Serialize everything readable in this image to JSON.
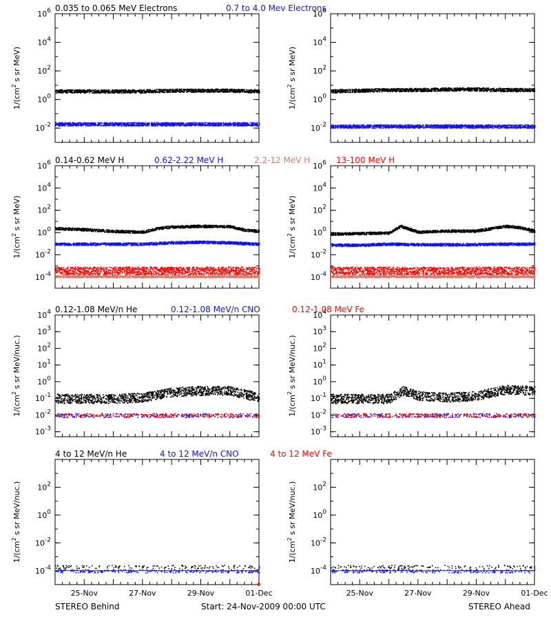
{
  "colors": {
    "black": "#000000",
    "blue": "#1010ff",
    "salmon": "#d08070",
    "red": "#ff0000"
  },
  "footer": {
    "left": "STEREO Behind",
    "center": "Start: 24-Nov-2009 00:00 UTC",
    "right": "STEREO Ahead"
  },
  "chart_data": [
    {
      "type": "scatter",
      "row": "electrons",
      "spacecraft": "STEREO Behind",
      "title": "0.035 to 0.065 MeV Electrons   0.7 to 4.0 Mev Electrons",
      "ylabel": "1/(cm2 s sr MeV)",
      "yscale": "log",
      "ylim": [
        0.001,
        1000000
      ],
      "yticks": [
        0.01,
        1,
        100,
        10000,
        1000000
      ],
      "yticklabels": [
        "10^-2",
        "10^0",
        "10^2",
        "10^4",
        "10^6"
      ],
      "xlim": [
        "2009-11-24",
        "2009-12-01"
      ],
      "xticklabels": [
        "25-Nov",
        "27-Nov",
        "29-Nov",
        "01-Dec"
      ],
      "series": [
        {
          "name": "0.035 to 0.065 MeV Electrons",
          "color": "black",
          "x": [
            "2009-11-24",
            "2009-11-25",
            "2009-11-26",
            "2009-11-27",
            "2009-11-28",
            "2009-11-29",
            "2009-11-30",
            "2009-12-01"
          ],
          "y": [
            4,
            4,
            4,
            4,
            4.5,
            4.5,
            4.5,
            4
          ]
        },
        {
          "name": "0.7 to 4.0 Mev Electrons",
          "color": "blue",
          "x": [
            "2009-11-24",
            "2009-11-25",
            "2009-11-26",
            "2009-11-27",
            "2009-11-28",
            "2009-11-29",
            "2009-11-30",
            "2009-12-01"
          ],
          "y": [
            0.02,
            0.02,
            0.02,
            0.02,
            0.02,
            0.02,
            0.02,
            0.02
          ]
        }
      ]
    },
    {
      "type": "scatter",
      "row": "electrons",
      "spacecraft": "STEREO Ahead",
      "ylabel": "1/(cm2 s sr MeV)",
      "yscale": "log",
      "ylim": [
        0.001,
        1000000
      ],
      "yticks": [
        0.01,
        1,
        100,
        10000,
        1000000
      ],
      "yticklabels": [
        "10^-2",
        "10^0",
        "10^2",
        "10^4",
        "10^6"
      ],
      "xlim": [
        "2009-11-24",
        "2009-12-01"
      ],
      "xticklabels": [
        "25-Nov",
        "27-Nov",
        "29-Nov",
        "01-Dec"
      ],
      "series": [
        {
          "name": "0.035 to 0.065 MeV Electrons",
          "color": "black",
          "x": [
            "2009-11-24",
            "2009-11-25",
            "2009-11-26",
            "2009-11-27",
            "2009-11-28",
            "2009-11-29",
            "2009-11-30",
            "2009-12-01"
          ],
          "y": [
            4,
            4.5,
            5,
            5,
            5.5,
            5.5,
            5,
            5
          ]
        },
        {
          "name": "0.7 to 4.0 Mev Electrons",
          "color": "blue",
          "x": [
            "2009-11-24",
            "2009-11-25",
            "2009-11-26",
            "2009-11-27",
            "2009-11-28",
            "2009-11-29",
            "2009-11-30",
            "2009-12-01"
          ],
          "y": [
            0.014,
            0.014,
            0.014,
            0.014,
            0.014,
            0.014,
            0.014,
            0.014
          ]
        }
      ]
    },
    {
      "type": "scatter",
      "row": "protons",
      "spacecraft": "STEREO Behind",
      "title": "0.14-0.62 MeV H   0.62-2.22 MeV H   2.2-12 MeV H   13-100 MeV H",
      "ylabel": "1/(cm2 s sr MeV)",
      "yscale": "log",
      "ylim": [
        1e-05,
        1000000
      ],
      "yticks": [
        0.0001,
        0.01,
        1,
        100,
        10000,
        1000000
      ],
      "yticklabels": [
        "10^-4",
        "10^-2",
        "10^0",
        "10^2",
        "10^4",
        "10^6"
      ],
      "xlim": [
        "2009-11-24",
        "2009-12-01"
      ],
      "xticklabels": [
        "25-Nov",
        "27-Nov",
        "29-Nov",
        "01-Dec"
      ],
      "series": [
        {
          "name": "0.14-0.62 MeV H",
          "color": "black",
          "x": [
            "2009-11-24",
            "2009-11-25",
            "2009-11-26",
            "2009-11-27",
            "2009-11-27.5",
            "2009-11-28",
            "2009-11-29",
            "2009-11-30",
            "2009-11-30.5",
            "2009-12-01"
          ],
          "y": [
            2.5,
            2,
            1.4,
            1.2,
            2.5,
            3.5,
            4,
            3.8,
            1.8,
            1.5
          ]
        },
        {
          "name": "0.62-2.22 MeV H",
          "color": "blue",
          "x": [
            "2009-11-24",
            "2009-11-25",
            "2009-11-26",
            "2009-11-27",
            "2009-11-28",
            "2009-11-29",
            "2009-11-30",
            "2009-12-01"
          ],
          "y": [
            0.1,
            0.1,
            0.1,
            0.1,
            0.13,
            0.15,
            0.13,
            0.1
          ]
        },
        {
          "name": "2.2-12 MeV H",
          "color": "salmon",
          "x": [
            "2009-11-24",
            "2009-12-01"
          ],
          "y": [
            0.00012,
            0.00012
          ]
        },
        {
          "name": "13-100 MeV H",
          "color": "red",
          "x": [
            "2009-11-24",
            "2009-11-25",
            "2009-11-26",
            "2009-11-27",
            "2009-11-28",
            "2009-11-29",
            "2009-11-30",
            "2009-12-01"
          ],
          "y": [
            0.0004,
            0.0004,
            0.0004,
            0.0004,
            0.0004,
            0.0004,
            0.0004,
            0.0004
          ]
        }
      ]
    },
    {
      "type": "scatter",
      "row": "protons",
      "spacecraft": "STEREO Ahead",
      "ylabel": "1/(cm2 s sr MeV)",
      "yscale": "log",
      "ylim": [
        1e-05,
        1000000
      ],
      "yticks": [
        0.0001,
        0.01,
        1,
        100,
        10000,
        1000000
      ],
      "yticklabels": [
        "10^-4",
        "10^-2",
        "10^0",
        "10^2",
        "10^4",
        "10^6"
      ],
      "xlim": [
        "2009-11-24",
        "2009-12-01"
      ],
      "xticklabels": [
        "25-Nov",
        "27-Nov",
        "29-Nov",
        "01-Dec"
      ],
      "series": [
        {
          "name": "0.14-0.62 MeV H",
          "color": "black",
          "x": [
            "2009-11-24",
            "2009-11-25",
            "2009-11-26",
            "2009-11-26.4",
            "2009-11-27",
            "2009-11-28",
            "2009-11-29",
            "2009-11-30",
            "2009-11-30.5",
            "2009-12-01"
          ],
          "y": [
            0.8,
            0.9,
            1,
            4,
            1.2,
            1.5,
            1.5,
            4,
            3,
            1.5
          ]
        },
        {
          "name": "0.62-2.22 MeV H",
          "color": "blue",
          "x": [
            "2009-11-24",
            "2009-11-25",
            "2009-11-26",
            "2009-11-27",
            "2009-11-28",
            "2009-11-29",
            "2009-11-30",
            "2009-12-01"
          ],
          "y": [
            0.08,
            0.08,
            0.1,
            0.09,
            0.09,
            0.09,
            0.1,
            0.1
          ]
        },
        {
          "name": "2.2-12 MeV H",
          "color": "salmon",
          "x": [
            "2009-11-24",
            "2009-12-01"
          ],
          "y": [
            0.00012,
            0.00012
          ]
        },
        {
          "name": "13-100 MeV H",
          "color": "red",
          "x": [
            "2009-11-24",
            "2009-11-25",
            "2009-11-26",
            "2009-11-27",
            "2009-11-28",
            "2009-11-29",
            "2009-11-30",
            "2009-12-01"
          ],
          "y": [
            0.0004,
            0.0004,
            0.0004,
            0.0004,
            0.0004,
            0.0004,
            0.0004,
            0.0004
          ]
        }
      ]
    },
    {
      "type": "scatter",
      "row": "heavy-low",
      "spacecraft": "STEREO Behind",
      "title": "0.12-1.08 MeV/n He   0.12-1.08 MeV/n CNO   0.12-1.08 MeV Fe",
      "ylabel": "1/(cm2 s sr MeV/nuc.)",
      "yscale": "log",
      "ylim": [
        0.0005,
        10000
      ],
      "yticks": [
        0.001,
        0.01,
        0.1,
        1,
        10,
        100,
        1000,
        10000
      ],
      "yticklabels": [
        "10^-3",
        "10^-2",
        "10^-1",
        "10^0",
        "10^1",
        "10^2",
        "10^3",
        "10^4"
      ],
      "xlim": [
        "2009-11-24",
        "2009-12-01"
      ],
      "xticklabels": [
        "25-Nov",
        "27-Nov",
        "29-Nov",
        "01-Dec"
      ],
      "series": [
        {
          "name": "0.12-1.08 MeV/n He",
          "color": "black",
          "x": [
            "2009-11-24",
            "2009-11-25",
            "2009-11-26",
            "2009-11-27",
            "2009-11-28",
            "2009-11-29",
            "2009-11-30",
            "2009-12-01"
          ],
          "y": [
            0.1,
            0.1,
            0.1,
            0.12,
            0.25,
            0.3,
            0.3,
            0.12
          ]
        },
        {
          "name": "0.12-1.08 MeV/n CNO",
          "color": "blue",
          "x": [
            "2009-11-24",
            "2009-12-01"
          ],
          "y": [
            0.01,
            0.01
          ]
        },
        {
          "name": "0.12-1.08 MeV Fe",
          "color": "red",
          "x": [
            "2009-11-24",
            "2009-12-01"
          ],
          "y": [
            0.01,
            0.01
          ]
        }
      ]
    },
    {
      "type": "scatter",
      "row": "heavy-low",
      "spacecraft": "STEREO Ahead",
      "ylabel": "1/(cm2 s sr MeV/nuc.)",
      "yscale": "log",
      "ylim": [
        0.0005,
        10000
      ],
      "yticks": [
        0.001,
        0.01,
        0.1,
        1,
        10,
        100,
        1000,
        10000
      ],
      "yticklabels": [
        "10^-3",
        "10^-2",
        "10^-1",
        "10^0",
        "10^1",
        "10^2",
        "10^3",
        "10^4"
      ],
      "xlim": [
        "2009-11-24",
        "2009-12-01"
      ],
      "xticklabels": [
        "25-Nov",
        "27-Nov",
        "29-Nov",
        "01-Dec"
      ],
      "series": [
        {
          "name": "0.12-1.08 MeV/n He",
          "color": "black",
          "x": [
            "2009-11-24",
            "2009-11-25",
            "2009-11-26",
            "2009-11-26.5",
            "2009-11-27",
            "2009-11-28",
            "2009-11-29",
            "2009-11-30",
            "2009-12-01"
          ],
          "y": [
            0.1,
            0.1,
            0.1,
            0.3,
            0.15,
            0.12,
            0.15,
            0.35,
            0.3
          ]
        },
        {
          "name": "0.12-1.08 MeV/n CNO",
          "color": "blue",
          "x": [
            "2009-11-24",
            "2009-12-01"
          ],
          "y": [
            0.01,
            0.01
          ]
        },
        {
          "name": "0.12-1.08 MeV Fe",
          "color": "red",
          "x": [
            "2009-11-24",
            "2009-12-01"
          ],
          "y": [
            0.01,
            0.01
          ]
        }
      ]
    },
    {
      "type": "scatter",
      "row": "heavy-high",
      "spacecraft": "STEREO Behind",
      "title": "4 to 12 MeV/n He   4 to 12 MeV/n CNO   4 to 12 MeV Fe",
      "ylabel": "1/(cm2 s sr MeV/nuc.)",
      "yscale": "log",
      "ylim": [
        1e-05,
        10000
      ],
      "yticks": [
        0.0001,
        0.01,
        1,
        100
      ],
      "yticklabels": [
        "10^-4",
        "10^-2",
        "10^0",
        "10^2"
      ],
      "xlim": [
        "2009-11-24",
        "2009-12-01"
      ],
      "xticklabels": [
        "25-Nov",
        "27-Nov",
        "29-Nov",
        "01-Dec"
      ],
      "series": [
        {
          "name": "4 to 12 MeV/n He",
          "color": "black",
          "x": [
            "2009-11-24",
            "2009-12-01"
          ],
          "y": [
            0.0002,
            0.0002
          ]
        },
        {
          "name": "4 to 12 MeV/n CNO",
          "color": "blue",
          "x": [
            "2009-11-24",
            "2009-12-01"
          ],
          "y": [
            0.0001,
            0.0001
          ]
        },
        {
          "name": "4 to 12 MeV Fe",
          "color": "red",
          "x": [
            "2009-12-01"
          ],
          "y": [
            1e-05
          ]
        }
      ]
    },
    {
      "type": "scatter",
      "row": "heavy-high",
      "spacecraft": "STEREO Ahead",
      "ylabel": "1/(cm2 s sr MeV/nuc.)",
      "yscale": "log",
      "ylim": [
        1e-05,
        10000
      ],
      "yticks": [
        0.0001,
        0.01,
        1,
        100
      ],
      "yticklabels": [
        "10^-4",
        "10^-2",
        "10^0",
        "10^2"
      ],
      "xlim": [
        "2009-11-24",
        "2009-12-01"
      ],
      "xticklabels": [
        "25-Nov",
        "27-Nov",
        "29-Nov",
        "01-Dec"
      ],
      "series": [
        {
          "name": "4 to 12 MeV/n He",
          "color": "black",
          "x": [
            "2009-11-24",
            "2009-12-01"
          ],
          "y": [
            0.0002,
            0.0002
          ]
        },
        {
          "name": "4 to 12 MeV/n CNO",
          "color": "blue",
          "x": [
            "2009-11-24",
            "2009-12-01"
          ],
          "y": [
            0.0001,
            0.0001
          ]
        }
      ]
    }
  ]
}
